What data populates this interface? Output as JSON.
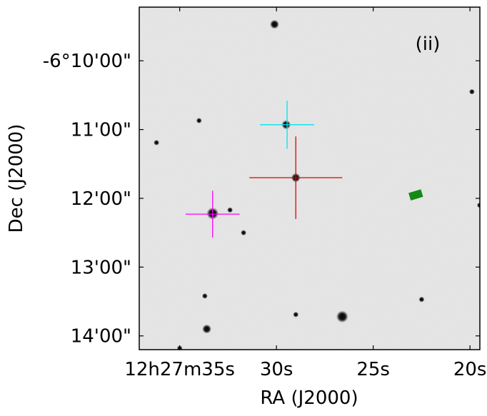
{
  "panel_label": "(ii)",
  "axes": {
    "xlabel": "RA (J2000)",
    "ylabel": "Dec (J2000)",
    "x_ticks": [
      {
        "value_s": 35,
        "label": "12h27m35s"
      },
      {
        "value_s": 30,
        "label": "30s"
      },
      {
        "value_s": 25,
        "label": "25s"
      },
      {
        "value_s": 20,
        "label": "20s"
      }
    ],
    "y_ticks": [
      {
        "value_arcmin": 10,
        "label": "-6°10'00\""
      },
      {
        "value_arcmin": 11,
        "label": "11'00\""
      },
      {
        "value_arcmin": 12,
        "label": "12'00\""
      },
      {
        "value_arcmin": 13,
        "label": "13'00\""
      },
      {
        "value_arcmin": 14,
        "label": "14'00\""
      }
    ]
  },
  "image": {
    "background": "light-grey sky with noise",
    "ra_range_s": [
      37.09,
      19.49
    ],
    "dec_range_arcmin": [
      9.22,
      14.2
    ]
  },
  "stars": [
    {
      "ra_s": 30.1,
      "dec": 9.47,
      "mag": 2
    },
    {
      "ra_s": 29.5,
      "dec": 10.93,
      "mag": 2
    },
    {
      "ra_s": 29.0,
      "dec": 11.7,
      "mag": 2
    },
    {
      "ra_s": 33.3,
      "dec": 12.22,
      "mag": 3
    },
    {
      "ra_s": 32.4,
      "dec": 12.17,
      "mag": 1
    },
    {
      "ra_s": 26.6,
      "dec": 13.72,
      "mag": 3
    },
    {
      "ra_s": 33.6,
      "dec": 13.9,
      "mag": 2
    },
    {
      "ra_s": 34.0,
      "dec": 10.87,
      "mag": 1
    },
    {
      "ra_s": 36.2,
      "dec": 11.19,
      "mag": 1
    },
    {
      "ra_s": 29.0,
      "dec": 13.69,
      "mag": 1
    },
    {
      "ra_s": 33.7,
      "dec": 13.42,
      "mag": 1
    },
    {
      "ra_s": 22.5,
      "dec": 13.47,
      "mag": 1
    },
    {
      "ra_s": 19.9,
      "dec": 10.45,
      "mag": 1
    },
    {
      "ra_s": 35.0,
      "dec": 14.18,
      "mag": 1
    },
    {
      "ra_s": 19.5,
      "dec": 12.1,
      "mag": 1
    },
    {
      "ra_s": 31.7,
      "dec": 12.5,
      "mag": 1
    }
  ],
  "markers": [
    {
      "type": "cross",
      "color": "#00e5ee",
      "ra_s": 29.45,
      "dec": 10.93,
      "arm_x_s": 1.4,
      "arm_y_arcmin": 0.35
    },
    {
      "type": "cross",
      "color": "#e00000",
      "ra_s": 29.0,
      "dec": 11.7,
      "arm_x_s": 2.4,
      "arm_y_arcmin": 0.6
    },
    {
      "type": "cross",
      "color": "#ff00ff",
      "ra_s": 33.3,
      "dec": 12.23,
      "arm_x_s": 1.4,
      "arm_y_arcmin": 0.34
    },
    {
      "type": "box",
      "color": "#148a14",
      "ra_s": 22.8,
      "dec": 11.95
    }
  ],
  "colors": {
    "axes": "#000000",
    "sky": "#e4e4e4"
  }
}
